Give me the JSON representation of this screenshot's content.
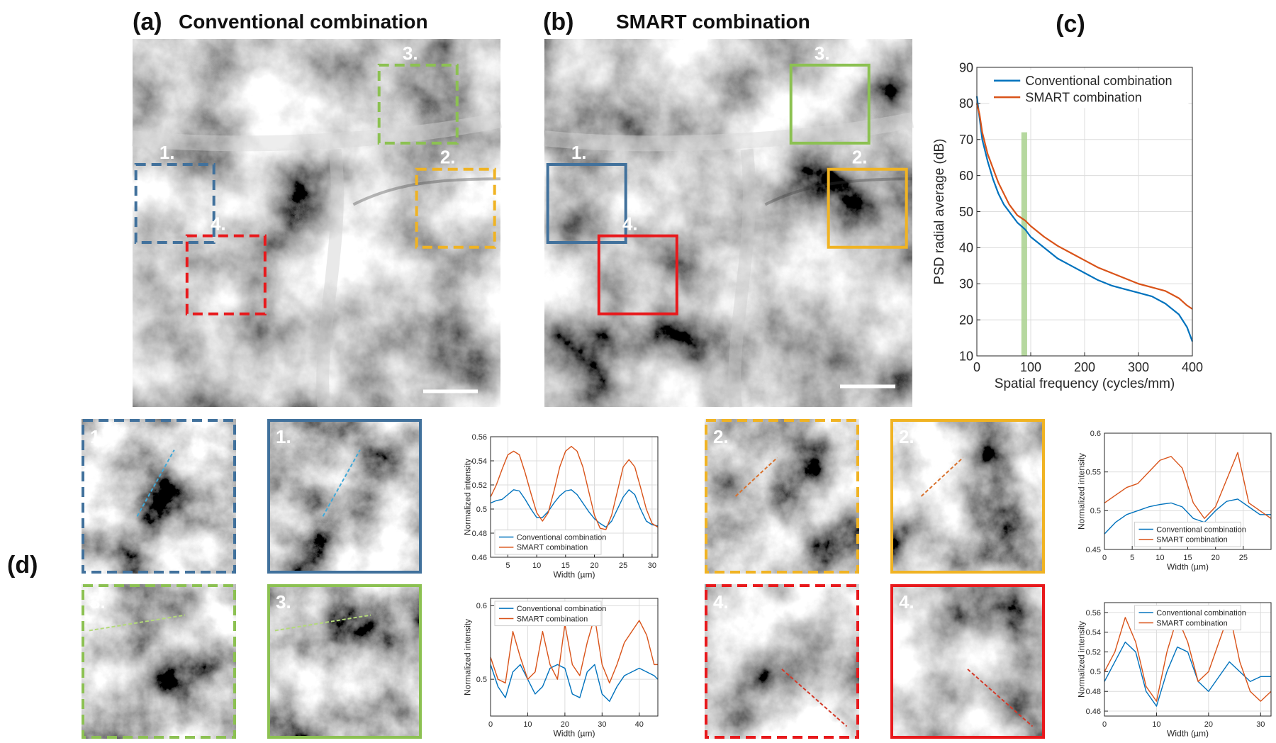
{
  "panels": {
    "a": {
      "label": "(a)",
      "title": "Conventional combination"
    },
    "b": {
      "label": "(b)",
      "title": "SMART combination"
    },
    "d": {
      "label": "(d)"
    }
  },
  "regions": [
    "1.",
    "2.",
    "3.",
    "4."
  ],
  "chart_data": [
    {
      "type": "line",
      "title": "(c)",
      "xlabel": "Spatial frequency (cycles/mm)",
      "ylabel": "PSD radial average (dB)",
      "x": [
        0,
        5,
        10,
        20,
        30,
        40,
        50,
        60,
        75,
        90,
        100,
        125,
        150,
        175,
        200,
        225,
        250,
        275,
        300,
        325,
        350,
        375,
        390,
        400
      ],
      "series": [
        {
          "name": "Conventional combination",
          "color": "#0072bd",
          "values": [
            82,
            76,
            70,
            64,
            59,
            55,
            52,
            50,
            47,
            45,
            43,
            40,
            37,
            35,
            33,
            31,
            29.5,
            28.5,
            27.5,
            26.5,
            24.5,
            21.5,
            18,
            14
          ]
        },
        {
          "name": "SMART combination",
          "color": "#d95319",
          "values": [
            80,
            77,
            72,
            66,
            62,
            58,
            55,
            52,
            49,
            47.5,
            46,
            43,
            40.5,
            38.5,
            36.5,
            34.5,
            33,
            31.5,
            30,
            29,
            28,
            26,
            24,
            23
          ]
        }
      ],
      "highlight": {
        "x": 88,
        "y": [
          10,
          72
        ],
        "color": "#a9d18e"
      },
      "xlim": [
        0,
        400
      ],
      "xticks": [
        0,
        100,
        200,
        300,
        400
      ],
      "ylim": [
        10,
        90
      ],
      "yticks": [
        10,
        20,
        30,
        40,
        50,
        60,
        70,
        80,
        90
      ],
      "grid": true,
      "legend": "upper right"
    },
    {
      "type": "line",
      "xlabel": "Width (µm)",
      "ylabel": "Normalized intensity",
      "x": [
        2,
        3,
        4,
        5,
        6,
        7,
        8,
        9,
        10,
        11,
        12,
        13,
        14,
        15,
        16,
        17,
        18,
        19,
        20,
        21,
        22,
        23,
        24,
        25,
        26,
        27,
        28,
        29,
        30,
        31
      ],
      "series": [
        {
          "name": "Conventional combination",
          "color": "#0072bd",
          "values": [
            0.505,
            0.507,
            0.508,
            0.512,
            0.516,
            0.515,
            0.508,
            0.5,
            0.493,
            0.493,
            0.498,
            0.505,
            0.511,
            0.515,
            0.516,
            0.512,
            0.505,
            0.498,
            0.492,
            0.488,
            0.485,
            0.49,
            0.5,
            0.51,
            0.516,
            0.512,
            0.5,
            0.49,
            0.487,
            0.486
          ]
        },
        {
          "name": "SMART combination",
          "color": "#d95319",
          "values": [
            0.51,
            0.52,
            0.533,
            0.545,
            0.548,
            0.545,
            0.53,
            0.513,
            0.497,
            0.49,
            0.497,
            0.515,
            0.535,
            0.548,
            0.552,
            0.548,
            0.535,
            0.515,
            0.495,
            0.484,
            0.483,
            0.495,
            0.515,
            0.535,
            0.541,
            0.535,
            0.518,
            0.5,
            0.488,
            0.485
          ]
        }
      ],
      "xlim": [
        2,
        31
      ],
      "xticks": [
        5,
        10,
        15,
        20,
        25,
        30
      ],
      "ylim": [
        0.46,
        0.56
      ],
      "yticks": [
        0.46,
        0.48,
        0.5,
        0.52,
        0.54,
        0.56
      ],
      "grid": true,
      "legend": "lower left"
    },
    {
      "type": "line",
      "xlabel": "Width (µm)",
      "ylabel": "Normalized intensity",
      "x": [
        0,
        2,
        4,
        6,
        8,
        10,
        12,
        14,
        16,
        18,
        20,
        22,
        24,
        26,
        28,
        30
      ],
      "series": [
        {
          "name": "Conventional combination",
          "color": "#0072bd",
          "values": [
            0.47,
            0.485,
            0.495,
            0.5,
            0.505,
            0.508,
            0.51,
            0.505,
            0.49,
            0.485,
            0.5,
            0.512,
            0.515,
            0.505,
            0.495,
            0.495
          ]
        },
        {
          "name": "SMART combination",
          "color": "#d95319",
          "values": [
            0.51,
            0.52,
            0.53,
            0.535,
            0.55,
            0.565,
            0.57,
            0.555,
            0.51,
            0.49,
            0.505,
            0.54,
            0.575,
            0.51,
            0.5,
            0.49
          ]
        }
      ],
      "xlim": [
        0,
        30
      ],
      "xticks": [
        0,
        5,
        10,
        15,
        20,
        25
      ],
      "ylim": [
        0.45,
        0.6
      ],
      "yticks": [
        0.45,
        0.5,
        0.55,
        0.6
      ],
      "grid": true,
      "legend": "lower center"
    },
    {
      "type": "line",
      "xlabel": "Width (µm)",
      "ylabel": "Normalized intensity",
      "x": [
        0,
        2,
        4,
        6,
        8,
        10,
        12,
        14,
        16,
        18,
        20,
        22,
        24,
        26,
        28,
        30,
        32,
        34,
        36,
        38,
        40,
        42,
        44,
        45
      ],
      "series": [
        {
          "name": "Conventional combination",
          "color": "#0072bd",
          "values": [
            0.52,
            0.49,
            0.475,
            0.51,
            0.52,
            0.5,
            0.48,
            0.49,
            0.515,
            0.52,
            0.515,
            0.48,
            0.475,
            0.51,
            0.52,
            0.48,
            0.47,
            0.49,
            0.505,
            0.51,
            0.515,
            0.51,
            0.505,
            0.5
          ]
        },
        {
          "name": "SMART combination",
          "color": "#d95319",
          "values": [
            0.53,
            0.5,
            0.495,
            0.565,
            0.53,
            0.5,
            0.51,
            0.565,
            0.52,
            0.5,
            0.575,
            0.52,
            0.505,
            0.55,
            0.585,
            0.52,
            0.495,
            0.52,
            0.55,
            0.565,
            0.58,
            0.56,
            0.52,
            0.52
          ]
        }
      ],
      "xlim": [
        0,
        45
      ],
      "xticks": [
        0,
        10,
        20,
        30,
        40
      ],
      "ylim": [
        0.45,
        0.61
      ],
      "yticks": [
        0.5,
        0.6
      ],
      "grid": true,
      "legend": "upper left"
    },
    {
      "type": "line",
      "xlabel": "Width (µm)",
      "ylabel": "Normalized intensity",
      "x": [
        0,
        2,
        4,
        6,
        8,
        10,
        12,
        14,
        16,
        18,
        20,
        22,
        24,
        26,
        28,
        30,
        32
      ],
      "series": [
        {
          "name": "Conventional combination",
          "color": "#0072bd",
          "values": [
            0.49,
            0.51,
            0.53,
            0.52,
            0.48,
            0.465,
            0.5,
            0.525,
            0.52,
            0.49,
            0.48,
            0.495,
            0.51,
            0.5,
            0.49,
            0.495,
            0.495
          ]
        },
        {
          "name": "SMART combination",
          "color": "#d95319",
          "values": [
            0.5,
            0.52,
            0.555,
            0.53,
            0.485,
            0.47,
            0.52,
            0.555,
            0.53,
            0.49,
            0.5,
            0.53,
            0.56,
            0.51,
            0.48,
            0.47,
            0.48
          ]
        }
      ],
      "xlim": [
        0,
        32
      ],
      "xticks": [
        0,
        10,
        20,
        30
      ],
      "ylim": [
        0.455,
        0.57
      ],
      "yticks": [
        0.46,
        0.48,
        0.5,
        0.52,
        0.54,
        0.56
      ],
      "grid": true,
      "legend": "upper center"
    }
  ]
}
